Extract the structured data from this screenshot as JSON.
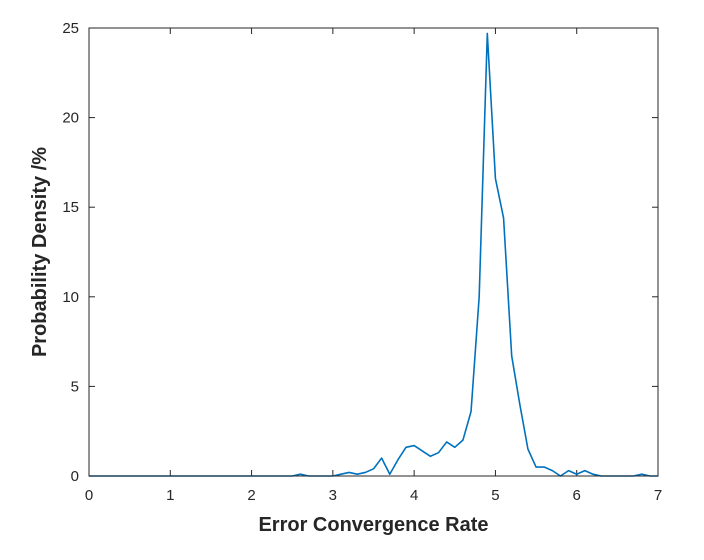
{
  "chart_data": {
    "type": "line",
    "title": "",
    "xlabel": "Error Convergence Rate",
    "ylabel": "Probability Density /%",
    "xlim": [
      0,
      7
    ],
    "ylim": [
      0,
      25
    ],
    "xticks": [
      0,
      1,
      2,
      3,
      4,
      5,
      6,
      7
    ],
    "yticks": [
      0,
      5,
      10,
      15,
      20,
      25
    ],
    "xtick_labels": [
      "0",
      "1",
      "2",
      "3",
      "4",
      "5",
      "6",
      "7"
    ],
    "ytick_labels": [
      "0",
      "5",
      "10",
      "15",
      "20",
      "25"
    ],
    "grid": false,
    "line_color": "#0072BD",
    "series": [
      {
        "x": [
          0,
          0.5,
          1.0,
          1.5,
          2.0,
          2.5,
          2.6,
          2.7,
          2.8,
          2.9,
          3.0,
          3.1,
          3.2,
          3.3,
          3.4,
          3.5,
          3.6,
          3.7,
          3.8,
          3.9,
          4.0,
          4.1,
          4.2,
          4.3,
          4.4,
          4.5,
          4.6,
          4.7,
          4.8,
          4.9,
          5.0,
          5.1,
          5.2,
          5.3,
          5.4,
          5.5,
          5.6,
          5.7,
          5.8,
          5.9,
          6.0,
          6.1,
          6.2,
          6.3,
          6.5,
          6.7,
          6.8,
          6.9,
          7.0
        ],
        "y": [
          0,
          0,
          0,
          0,
          0,
          0,
          0.1,
          0,
          0,
          0,
          0,
          0.1,
          0.2,
          0.1,
          0.2,
          0.4,
          1.0,
          0.1,
          0.9,
          1.6,
          1.7,
          1.4,
          1.1,
          1.3,
          1.9,
          1.6,
          2.0,
          3.6,
          10.0,
          24.7,
          16.6,
          14.4,
          6.7,
          4.0,
          1.5,
          0.5,
          0.5,
          0.3,
          0,
          0.3,
          0.1,
          0.3,
          0.1,
          0,
          0,
          0,
          0.1,
          0,
          0
        ]
      }
    ]
  }
}
